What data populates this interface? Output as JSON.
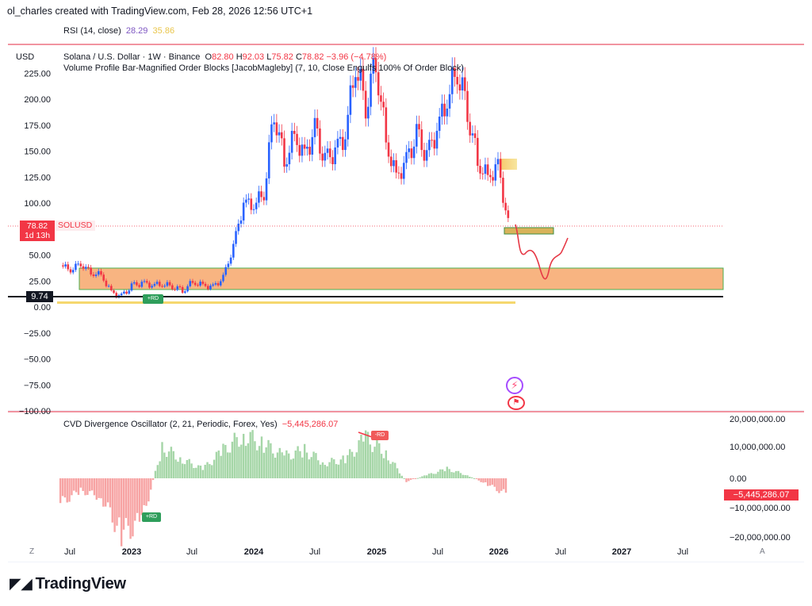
{
  "credit": "ol_charles created with TradingView.com, Feb 28, 2026 12:56 UTC+1",
  "brand": {
    "logo_icon": "tradingview-logo-icon",
    "name": "TradingView"
  },
  "rsi": {
    "label": "RSI (14, close)",
    "value": "28.29",
    "ma_value": "35.86",
    "value_color": "#7e57c2",
    "ma_color": "#e9c54a"
  },
  "main": {
    "currency": "USD",
    "symbol_line": "Solana / U.S. Dollar · 1W · Binance",
    "ohlc": {
      "o_label": "O",
      "o": "82.80",
      "h_label": "H",
      "h": "92.03",
      "l_label": "L",
      "l": "75.82",
      "c_label": "C",
      "c": "78.82",
      "change": "−3.96 (−4.78%)"
    },
    "indicator_line": "Volume Profile Bar-Magnified Order Blocks [JacobMagleby] (7, 10, Close Engulfs 100% Of Order Block)",
    "price_badge": {
      "price": "78.82",
      "countdown": "1d 13h",
      "symbol": "SOLUSD",
      "color": "#f23645"
    },
    "level_badge": "9.74",
    "signal_label": "+RD",
    "colors": {
      "up": "#2962ff",
      "down": "#f23645",
      "zone": "#f7a76b",
      "zone_border": "#4caf50"
    }
  },
  "cvd": {
    "label": "CVD Divergence Oscillator (2, 21, Periodic, Forex, Yes)",
    "value": "−5,445,286.07",
    "badge": "−5,445,286.07",
    "signal_top": "-RD",
    "signal_bottom": "+RD",
    "axis_ticks": [
      "20,000,000.00",
      "10,000,000.00",
      "0.00",
      "−10,000,000.00",
      "−20,000,000.00"
    ]
  },
  "time_axis": {
    "labels": [
      {
        "text": "Jul",
        "bold": false
      },
      {
        "text": "2023",
        "bold": true
      },
      {
        "text": "Jul",
        "bold": false
      },
      {
        "text": "2024",
        "bold": true
      },
      {
        "text": "Jul",
        "bold": false
      },
      {
        "text": "2025",
        "bold": true
      },
      {
        "text": "Jul",
        "bold": false
      },
      {
        "text": "2026",
        "bold": true
      },
      {
        "text": "Jul",
        "bold": false
      },
      {
        "text": "2027",
        "bold": true
      },
      {
        "text": "Jul",
        "bold": false
      }
    ],
    "left_button": "Z",
    "right_button": "A"
  },
  "chart_data": {
    "type": "line",
    "title": "Solana / U.S. Dollar · 1W · Binance",
    "ylabel": "USD",
    "ylim": [
      -100,
      240
    ],
    "y_ticks": [
      225,
      200,
      175,
      150,
      125,
      100,
      50,
      25,
      0,
      -25,
      -50,
      -75,
      -100
    ],
    "y_tick_labels": [
      "225.00",
      "200.00",
      "175.00",
      "150.00",
      "125.00",
      "100.00",
      "50.00",
      "25.00",
      "0.00",
      "−25.00",
      "−50.00",
      "−75.00",
      "−100.00"
    ],
    "current_price": 78.82,
    "marked_level": 9.74,
    "price_path": [
      {
        "x": "2022-06",
        "y": 40
      },
      {
        "x": "2022-07",
        "y": 36
      },
      {
        "x": "2022-08",
        "y": 42
      },
      {
        "x": "2022-09",
        "y": 33
      },
      {
        "x": "2022-10",
        "y": 31
      },
      {
        "x": "2022-11",
        "y": 14
      },
      {
        "x": "2022-12",
        "y": 10
      },
      {
        "x": "2023-01",
        "y": 20
      },
      {
        "x": "2023-02",
        "y": 23
      },
      {
        "x": "2023-03",
        "y": 21
      },
      {
        "x": "2023-04",
        "y": 22
      },
      {
        "x": "2023-05",
        "y": 20
      },
      {
        "x": "2023-06",
        "y": 16
      },
      {
        "x": "2023-07",
        "y": 24
      },
      {
        "x": "2023-08",
        "y": 21
      },
      {
        "x": "2023-09",
        "y": 19
      },
      {
        "x": "2023-10",
        "y": 28
      },
      {
        "x": "2023-11",
        "y": 58
      },
      {
        "x": "2023-12",
        "y": 100
      },
      {
        "x": "2024-01",
        "y": 98
      },
      {
        "x": "2024-02",
        "y": 110
      },
      {
        "x": "2024-03",
        "y": 190
      },
      {
        "x": "2024-04",
        "y": 140
      },
      {
        "x": "2024-05",
        "y": 165
      },
      {
        "x": "2024-06",
        "y": 145
      },
      {
        "x": "2024-07",
        "y": 170
      },
      {
        "x": "2024-08",
        "y": 140
      },
      {
        "x": "2024-09",
        "y": 150
      },
      {
        "x": "2024-10",
        "y": 165
      },
      {
        "x": "2024-11",
        "y": 235
      },
      {
        "x": "2024-12",
        "y": 195
      },
      {
        "x": "2025-01",
        "y": 238
      },
      {
        "x": "2025-02",
        "y": 160
      },
      {
        "x": "2025-03",
        "y": 125
      },
      {
        "x": "2025-04",
        "y": 140
      },
      {
        "x": "2025-05",
        "y": 165
      },
      {
        "x": "2025-06",
        "y": 145
      },
      {
        "x": "2025-07",
        "y": 170
      },
      {
        "x": "2025-08",
        "y": 200
      },
      {
        "x": "2025-09",
        "y": 230
      },
      {
        "x": "2025-10",
        "y": 190
      },
      {
        "x": "2025-11",
        "y": 140
      },
      {
        "x": "2025-12",
        "y": 125
      },
      {
        "x": "2026-01",
        "y": 135
      },
      {
        "x": "2026-02",
        "y": 80
      }
    ],
    "cvd_bars": [
      {
        "x": "2022-06",
        "y": -8000000
      },
      {
        "x": "2022-08",
        "y": -4000000
      },
      {
        "x": "2022-10",
        "y": -6000000
      },
      {
        "x": "2022-12",
        "y": -18000000
      },
      {
        "x": "2023-02",
        "y": -14000000
      },
      {
        "x": "2023-04",
        "y": 10000000
      },
      {
        "x": "2023-06",
        "y": 6000000
      },
      {
        "x": "2023-08",
        "y": 3000000
      },
      {
        "x": "2023-10",
        "y": 9000000
      },
      {
        "x": "2023-12",
        "y": 14000000
      },
      {
        "x": "2024-02",
        "y": 11000000
      },
      {
        "x": "2024-04",
        "y": 7000000
      },
      {
        "x": "2024-06",
        "y": 9000000
      },
      {
        "x": "2024-08",
        "y": 5000000
      },
      {
        "x": "2024-10",
        "y": 6000000
      },
      {
        "x": "2024-12",
        "y": 13000000
      },
      {
        "x": "2025-02",
        "y": 8000000
      },
      {
        "x": "2025-04",
        "y": -1000000
      },
      {
        "x": "2025-06",
        "y": 1000000
      },
      {
        "x": "2025-08",
        "y": 3000000
      },
      {
        "x": "2025-10",
        "y": 1000000
      },
      {
        "x": "2025-12",
        "y": -2000000
      },
      {
        "x": "2026-02",
        "y": -5445286
      }
    ]
  }
}
